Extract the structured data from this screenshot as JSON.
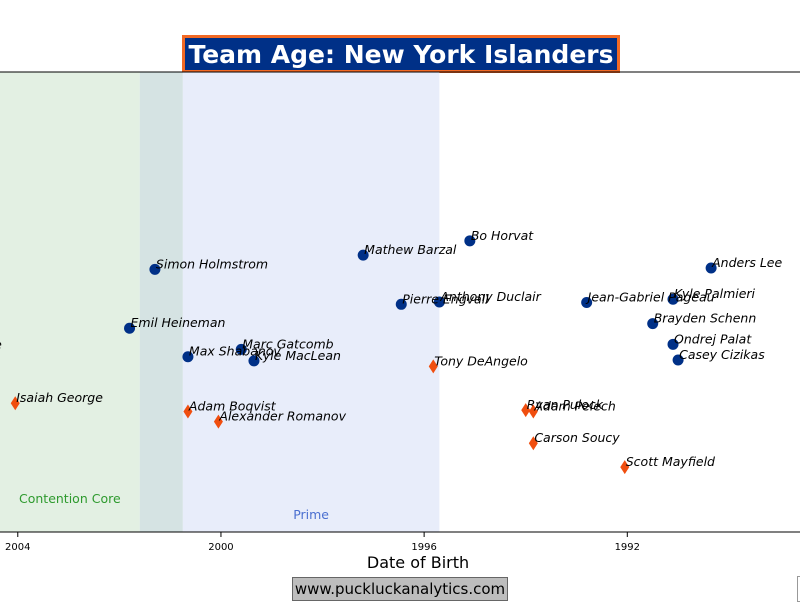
{
  "chart_data": {
    "type": "scatter",
    "title": "Team Age: New York Islanders",
    "xlabel": "Date of Birth",
    "ylabel": "",
    "x_reversed": true,
    "xlim": [
      2004.35,
      1988.6
    ],
    "ylim": [
      0,
      1
    ],
    "x_ticks": [
      2004,
      2000,
      1996,
      1992
    ],
    "tick_labels": [
      "2004",
      "2000",
      "1996",
      "1992"
    ],
    "bands": [
      {
        "label": "Contention Core",
        "from": 2004.35,
        "to": 2001.6,
        "color": "#e3f0e3",
        "label_color": "#2e9a2e"
      },
      {
        "label": "",
        "from": 2001.6,
        "to": 2000.75,
        "color": "#d5e3e3",
        "label_color": ""
      },
      {
        "label": "Prime",
        "from": 2000.75,
        "to": 1995.7,
        "color": "#e8edfa",
        "label_color": "#4a6fd0"
      }
    ],
    "series": [
      {
        "name": "",
        "marker": "circle",
        "color": "#003087",
        "points": [
          {
            "label": "Bo Horvat",
            "x": 1995.1,
            "y": 0.633
          },
          {
            "label": "Mathew Barzal",
            "x": 1997.2,
            "y": 0.602
          },
          {
            "label": "Simon Holmstrom",
            "x": 2001.3,
            "y": 0.571
          },
          {
            "label": "Anders Lee",
            "x": 1990.35,
            "y": 0.574
          },
          {
            "label": "Kyle Palmieri",
            "x": 1991.1,
            "y": 0.506
          },
          {
            "label": "Anthony Duclair",
            "x": 1995.7,
            "y": 0.5
          },
          {
            "label": "Pierre Engvall",
            "x": 1996.45,
            "y": 0.495
          },
          {
            "label": "Jean-Gabriel Pageau",
            "x": 1992.8,
            "y": 0.499
          },
          {
            "label": "Brayden Schenn",
            "x": 1991.5,
            "y": 0.453
          },
          {
            "label": "Emil Heineman",
            "x": 2001.8,
            "y": 0.443
          },
          {
            "label": "Ondrej Palat",
            "x": 1991.1,
            "y": 0.408
          },
          {
            "label": "Marc Gatcomb",
            "x": 1999.6,
            "y": 0.397
          },
          {
            "label": "Max Shabanov",
            "x": 2000.65,
            "y": 0.381
          },
          {
            "label": "Kyle MacLean",
            "x": 1999.35,
            "y": 0.372
          },
          {
            "label": "Casey Cizikas",
            "x": 1991.0,
            "y": 0.374
          },
          {
            "label": "m Ritchie",
            "x": 2005.5,
            "y": 0.396
          }
        ]
      },
      {
        "name": "",
        "marker": "diamond",
        "color": "#f04e0f",
        "points": [
          {
            "label": "Tony DeAngelo",
            "x": 1995.82,
            "y": 0.36
          },
          {
            "label": "Isaiah George",
            "x": 2004.05,
            "y": 0.28
          },
          {
            "label": "Adam Boqvist",
            "x": 2000.65,
            "y": 0.262
          },
          {
            "label": "Alexander Romanov",
            "x": 2000.05,
            "y": 0.24
          },
          {
            "label": "Ryan Pulock",
            "x": 1994.0,
            "y": 0.265
          },
          {
            "label": "Adam Pelech",
            "x": 1993.85,
            "y": 0.262
          },
          {
            "label": "Carson Soucy",
            "x": 1993.85,
            "y": 0.193
          },
          {
            "label": "Scott Mayfield",
            "x": 1992.05,
            "y": 0.141
          }
        ]
      }
    ],
    "grid": false
  },
  "footer": {
    "text": "www.puckluckanalytics.com"
  }
}
